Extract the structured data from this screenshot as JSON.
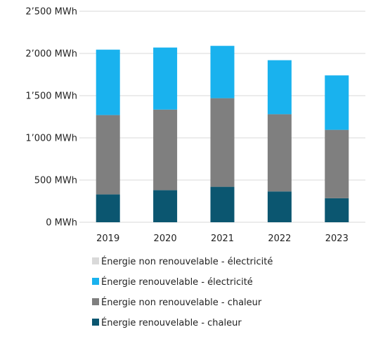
{
  "chart_data": {
    "type": "bar",
    "stacked": true,
    "categories": [
      "2019",
      "2020",
      "2021",
      "2022",
      "2023"
    ],
    "series": [
      {
        "name": "Énergie renouvelable - chaleur",
        "color": "#0B5670",
        "values": [
          330,
          380,
          420,
          365,
          285
        ]
      },
      {
        "name": "Énergie non renouvelable - chaleur",
        "color": "#7F7F7F",
        "values": [
          940,
          955,
          1050,
          915,
          810
        ]
      },
      {
        "name": "Énergie renouvelable - électricité",
        "color": "#19B2EE",
        "values": [
          775,
          735,
          620,
          640,
          645
        ]
      },
      {
        "name": "Énergie non renouvelable - électricité",
        "color": "#D9D9D9",
        "values": [
          0,
          0,
          0,
          0,
          0
        ]
      }
    ],
    "ylim": [
      0,
      2500
    ],
    "yticks": [
      {
        "value": 0,
        "label": "0 MWh"
      },
      {
        "value": 500,
        "label": "500 MWh"
      },
      {
        "value": 1000,
        "label": "1’000 MWh"
      },
      {
        "value": 1500,
        "label": "1’500 MWh"
      },
      {
        "value": 2000,
        "label": "2’000 MWh"
      },
      {
        "value": 2500,
        "label": "2’500 MWh"
      }
    ],
    "legend_order": [
      "Énergie non renouvelable - électricité",
      "Énergie renouvelable - électricité",
      "Énergie non renouvelable - chaleur",
      "Énergie renouvelable - chaleur"
    ],
    "legend_position": "bottom",
    "grid": true,
    "title": "",
    "xlabel": "",
    "ylabel": ""
  }
}
